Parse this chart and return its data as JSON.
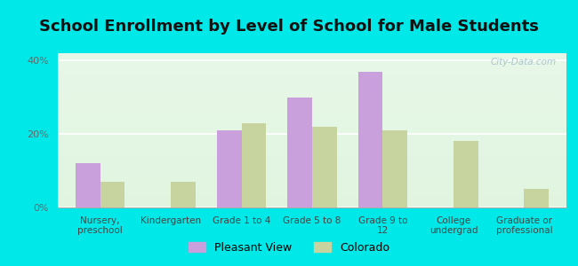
{
  "title": "School Enrollment by Level of School for Male Students",
  "categories": [
    "Nursery,\npreschool",
    "Kindergarten",
    "Grade 1 to 4",
    "Grade 5 to 8",
    "Grade 9 to\n12",
    "College\nundergrad",
    "Graduate or\nprofessional"
  ],
  "pleasant_view": [
    12.0,
    0.0,
    21.0,
    30.0,
    37.0,
    0.0,
    0.0
  ],
  "colorado": [
    7.0,
    7.0,
    23.0,
    22.0,
    21.0,
    18.0,
    5.0
  ],
  "pleasant_view_color": "#c9a0dc",
  "colorado_color": "#c8d4a0",
  "background_outer": "#00e8e8",
  "background_inner_topleft": "#f5fff5",
  "background_inner_bottomright": "#e0f0e8",
  "ylim": [
    0,
    42
  ],
  "yticks": [
    0,
    20,
    40
  ],
  "ytick_labels": [
    "0%",
    "20%",
    "40%"
  ],
  "bar_width": 0.35,
  "title_fontsize": 13,
  "tick_fontsize": 8,
  "legend_labels": [
    "Pleasant View",
    "Colorado"
  ],
  "watermark": "City-Data.com"
}
